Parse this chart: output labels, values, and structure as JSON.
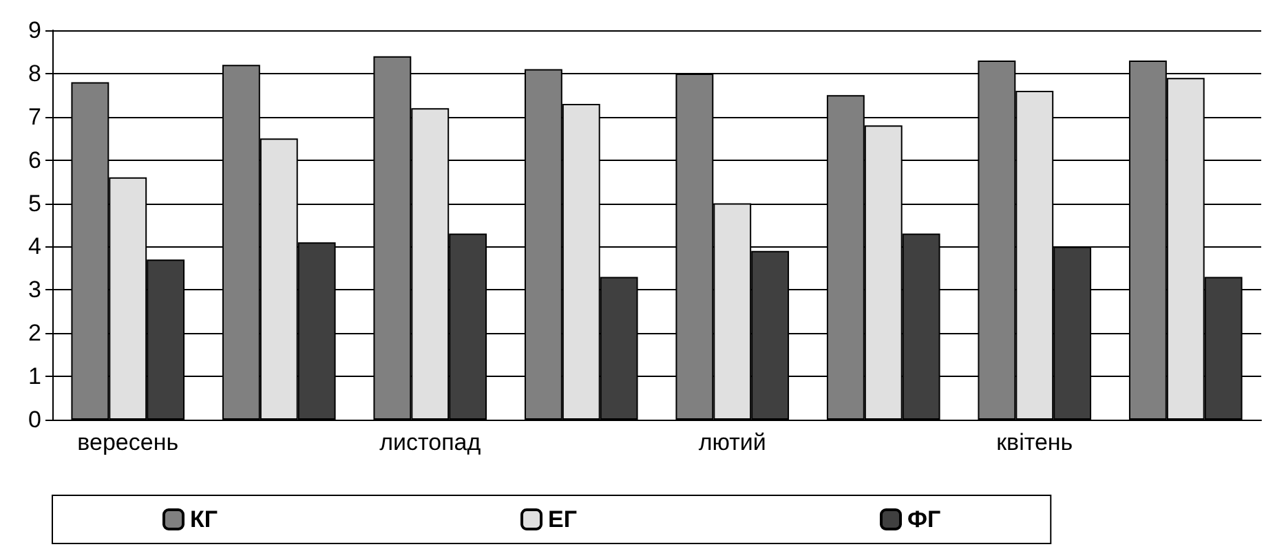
{
  "chart_data": {
    "type": "bar",
    "categories": [
      "вересень",
      null,
      "листопад",
      null,
      "лютий",
      null,
      "квітень",
      null
    ],
    "series": [
      {
        "name": "КГ",
        "color": "#808080",
        "values": [
          7.8,
          8.2,
          8.4,
          8.1,
          8.0,
          7.5,
          8.3,
          8.3
        ]
      },
      {
        "name": "ЕГ",
        "color": "#e0e0e0",
        "values": [
          5.6,
          6.5,
          7.2,
          7.3,
          5.0,
          6.8,
          7.6,
          7.9
        ]
      },
      {
        "name": "ФГ",
        "color": "#404040",
        "values": [
          3.7,
          4.1,
          4.3,
          3.3,
          3.9,
          4.3,
          4.0,
          3.3
        ]
      }
    ],
    "ylim": [
      0,
      9
    ],
    "yticks": [
      0,
      1,
      2,
      3,
      4,
      5,
      6,
      7,
      8,
      9
    ],
    "grid": "y",
    "legend": "bottom"
  }
}
